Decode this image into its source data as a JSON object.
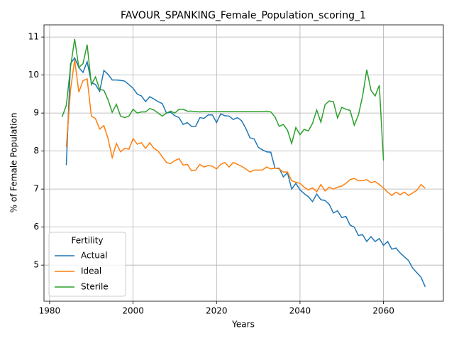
{
  "chart_data": {
    "type": "line",
    "title": "FAVOUR_SPANKING_Female_Population_scoring_1",
    "x_label": "Years",
    "y_label": "% of Female Population",
    "legend_title": "Fertility",
    "legend_position": "lower left",
    "grid": true,
    "xlim": [
      1978.65,
      2074.35
    ],
    "xticks": [
      1980,
      2000,
      2020,
      2040,
      2060
    ],
    "ylim": [
      4.05,
      11.32
    ],
    "yticks": [
      5,
      6,
      7,
      8,
      9,
      10,
      11
    ],
    "x": [
      1983,
      1984,
      1985,
      1986,
      1987,
      1988,
      1989,
      1990,
      1991,
      1992,
      1993,
      1994,
      1995,
      1996,
      1997,
      1998,
      1999,
      2000,
      2001,
      2002,
      2003,
      2004,
      2005,
      2006,
      2007,
      2008,
      2009,
      2010,
      2011,
      2012,
      2013,
      2014,
      2015,
      2016,
      2017,
      2018,
      2019,
      2020,
      2021,
      2022,
      2023,
      2024,
      2025,
      2026,
      2027,
      2028,
      2029,
      2030,
      2031,
      2032,
      2033,
      2034,
      2035,
      2036,
      2037,
      2038,
      2039,
      2040,
      2041,
      2042,
      2043,
      2044,
      2045,
      2046,
      2047,
      2048,
      2049,
      2050,
      2051,
      2052,
      2053,
      2054,
      2055,
      2056,
      2057,
      2058,
      2059,
      2060,
      2061,
      2062,
      2063,
      2064,
      2065,
      2066,
      2067,
      2068,
      2069,
      2070
    ],
    "series": [
      {
        "name": "Actual",
        "color": "#1f77b4",
        "values": [
          null,
          7.63,
          10.3,
          10.45,
          10.2,
          10.07,
          10.35,
          9.8,
          9.75,
          9.57,
          10.12,
          10.02,
          9.87,
          9.87,
          9.86,
          9.84,
          9.75,
          9.65,
          9.5,
          9.45,
          9.3,
          9.43,
          9.37,
          9.3,
          9.25,
          9.0,
          9.02,
          8.93,
          8.88,
          8.7,
          8.75,
          8.65,
          8.65,
          8.88,
          8.86,
          8.95,
          8.95,
          8.75,
          8.98,
          8.93,
          8.92,
          8.83,
          8.88,
          8.8,
          8.6,
          8.35,
          8.32,
          8.1,
          8.03,
          7.98,
          7.97,
          7.55,
          7.55,
          7.32,
          7.43,
          7.0,
          7.15,
          6.98,
          6.88,
          6.8,
          6.67,
          6.87,
          6.72,
          6.7,
          6.6,
          6.37,
          6.43,
          6.25,
          6.28,
          6.05,
          6.0,
          5.78,
          5.8,
          5.62,
          5.75,
          5.62,
          5.7,
          5.52,
          5.62,
          5.42,
          5.45,
          5.32,
          5.22,
          5.12,
          4.92,
          4.8,
          4.68,
          4.43
        ]
      },
      {
        "name": "Ideal",
        "color": "#ff7f0e",
        "values": [
          null,
          8.1,
          9.6,
          10.4,
          9.55,
          9.85,
          9.9,
          8.92,
          8.85,
          8.58,
          8.67,
          8.33,
          7.83,
          8.2,
          7.98,
          8.07,
          8.05,
          8.33,
          8.18,
          8.22,
          8.07,
          8.22,
          8.07,
          8.0,
          7.85,
          7.7,
          7.67,
          7.75,
          7.8,
          7.63,
          7.65,
          7.48,
          7.5,
          7.65,
          7.58,
          7.62,
          7.6,
          7.53,
          7.65,
          7.7,
          7.58,
          7.7,
          7.65,
          7.6,
          7.53,
          7.45,
          7.5,
          7.5,
          7.5,
          7.58,
          7.53,
          7.55,
          7.53,
          7.45,
          7.45,
          7.22,
          7.18,
          7.15,
          7.05,
          6.98,
          7.03,
          6.93,
          7.12,
          6.95,
          7.05,
          7.0,
          7.05,
          7.08,
          7.15,
          7.25,
          7.28,
          7.22,
          7.22,
          7.25,
          7.17,
          7.2,
          7.12,
          7.03,
          6.92,
          6.83,
          6.92,
          6.85,
          6.92,
          6.83,
          6.9,
          6.97,
          7.12,
          7.02
        ]
      },
      {
        "name": "Sterile",
        "color": "#2ca02c",
        "values": [
          8.9,
          9.2,
          10.2,
          10.95,
          10.2,
          10.3,
          10.8,
          9.75,
          9.95,
          9.62,
          9.6,
          9.35,
          9.02,
          9.23,
          8.92,
          8.88,
          8.92,
          9.1,
          9.0,
          9.03,
          9.03,
          9.12,
          9.08,
          9.0,
          8.92,
          9.0,
          9.05,
          9.0,
          9.1,
          9.1,
          9.05,
          9.05,
          9.04,
          9.03,
          9.04,
          9.04,
          9.04,
          9.04,
          9.04,
          9.04,
          9.04,
          9.04,
          9.04,
          9.04,
          9.04,
          9.04,
          9.04,
          9.04,
          9.04,
          9.05,
          9.03,
          8.9,
          8.65,
          8.7,
          8.55,
          8.2,
          8.62,
          8.43,
          8.57,
          8.53,
          8.73,
          9.08,
          8.76,
          9.22,
          9.32,
          9.3,
          8.87,
          9.15,
          9.1,
          9.07,
          8.68,
          8.95,
          9.45,
          10.14,
          9.6,
          9.45,
          9.73,
          7.75,
          null,
          null,
          null,
          null,
          null,
          null,
          null,
          null,
          null,
          null
        ]
      }
    ]
  }
}
